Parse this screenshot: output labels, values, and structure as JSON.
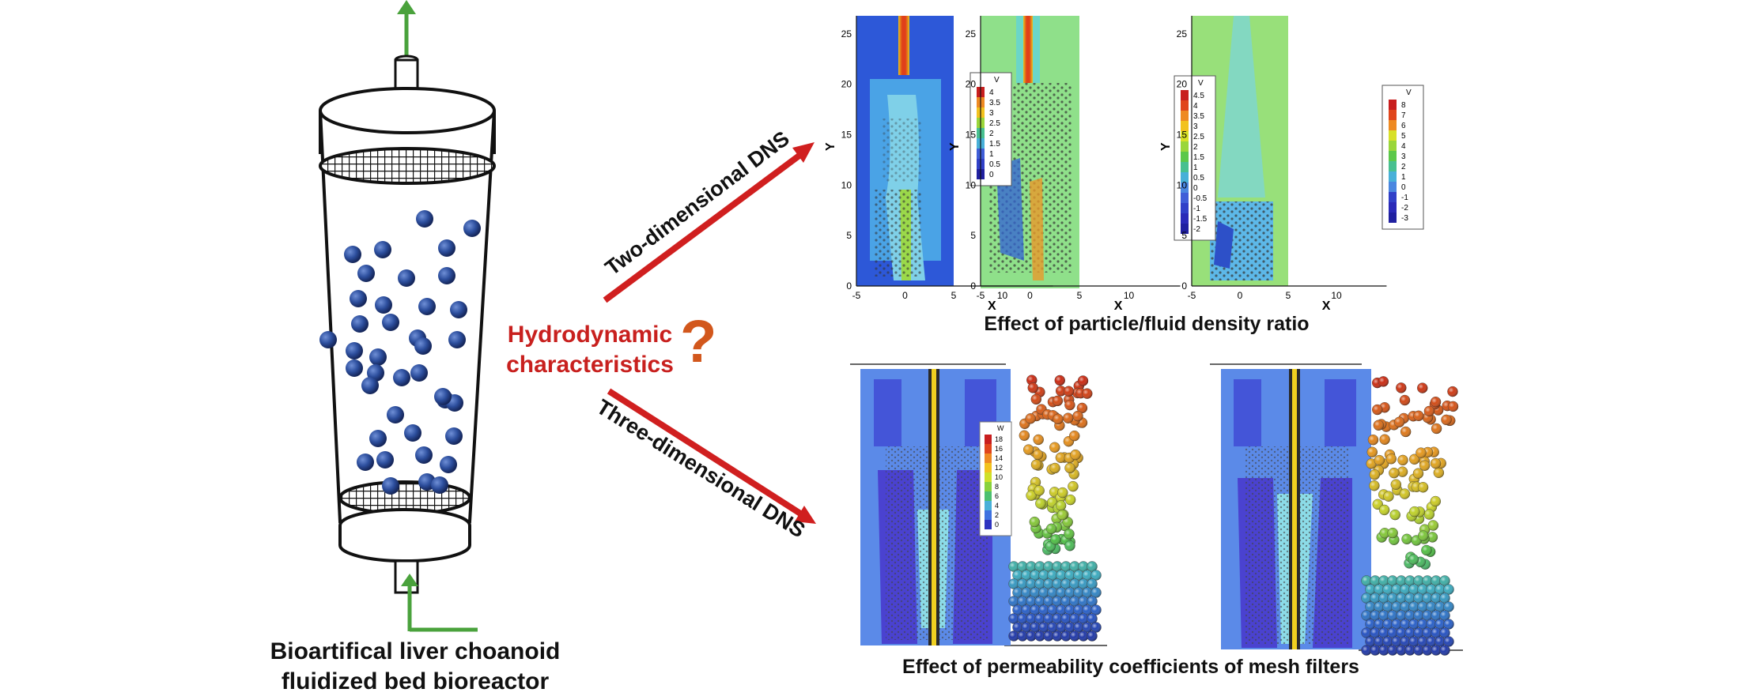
{
  "reactor": {
    "caption_line1": "Bioartifical liver choanoid",
    "caption_line2": "fluidized bed bioreactor"
  },
  "center": {
    "line1": "Hydrodynamic",
    "line2": "characteristics",
    "question_mark": "?"
  },
  "arrows": {
    "two_d": "Two-dimensional DNS",
    "three_d": "Three-dimensional DNS"
  },
  "top_section": {
    "caption": "Effect of particle/fluid density ratio",
    "x_label": "X",
    "y_label": "Y",
    "x_ticks": [
      "-5",
      "0",
      "5",
      "10"
    ],
    "y_ticks": [
      "0",
      "5",
      "10",
      "15",
      "20",
      "25"
    ],
    "legend_title": "V",
    "legend1": [
      "4",
      "3.5",
      "3",
      "2.5",
      "2",
      "1.5",
      "1",
      "0.5",
      "0"
    ],
    "legend2": [
      "4.5",
      "4",
      "3.5",
      "3",
      "2.5",
      "2",
      "1.5",
      "1",
      "0.5",
      "0",
      "-0.5",
      "-1",
      "-1.5",
      "-2"
    ],
    "legend3": [
      "8",
      "7",
      "6",
      "5",
      "4",
      "3",
      "2",
      "1",
      "0",
      "-1",
      "-2",
      "-3"
    ]
  },
  "bottom_section": {
    "caption": "Effect of permeability coefficients of mesh filters",
    "legend_title": "W",
    "legend": [
      "18",
      "16",
      "14",
      "12",
      "10",
      "8",
      "6",
      "4",
      "2",
      "0"
    ]
  },
  "colors": {
    "flow_arrow": "#4aa23c",
    "dns_arrow": "#d01f1f",
    "center_text": "#c8201e",
    "question_mark": "#d2571c",
    "particle": "#2d4f9e"
  }
}
